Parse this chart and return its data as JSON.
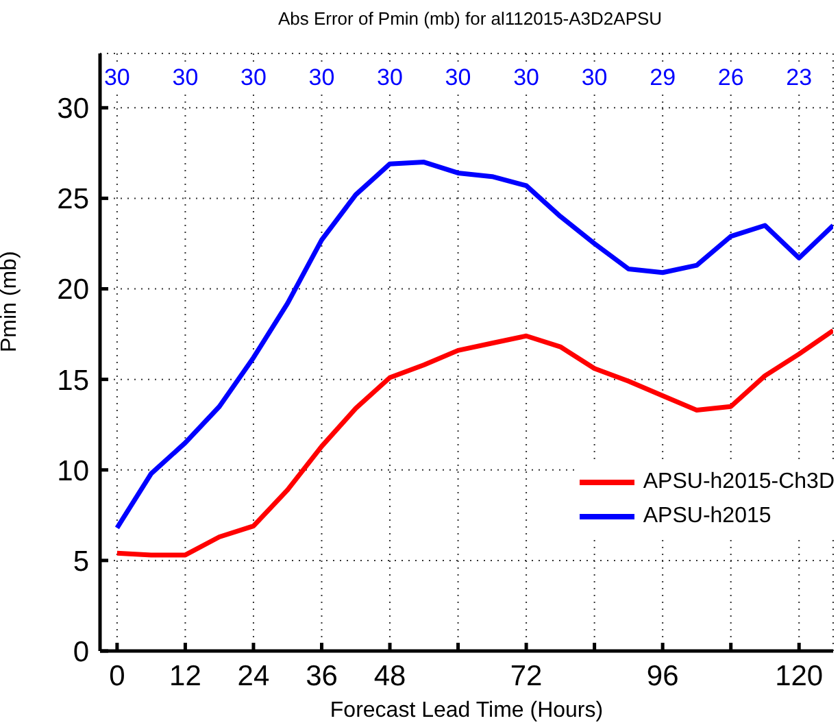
{
  "chart_data": {
    "type": "line",
    "title": "Abs Error of Pmin (mb) for al112015-A3D2APSU",
    "xlabel": "Forecast Lead Time (Hours)",
    "ylabel": "Pmin (mb)",
    "x": [
      0,
      6,
      12,
      18,
      24,
      30,
      36,
      42,
      48,
      54,
      60,
      66,
      72,
      78,
      84,
      90,
      96,
      102,
      108,
      114,
      120,
      126
    ],
    "series": [
      {
        "name": "APSU-h2015-Ch3D",
        "color": "#ff0000",
        "values": [
          5.4,
          5.3,
          5.3,
          6.3,
          6.9,
          8.9,
          11.3,
          13.4,
          15.1,
          15.8,
          16.6,
          17.0,
          17.4,
          16.8,
          15.6,
          14.9,
          14.1,
          13.3,
          13.5,
          15.2,
          16.4,
          17.7
        ]
      },
      {
        "name": "APSU-h2015",
        "color": "#0000ff",
        "values": [
          6.8,
          9.8,
          11.5,
          13.5,
          16.2,
          19.2,
          22.7,
          25.2,
          26.9,
          27.0,
          26.4,
          26.2,
          25.7,
          24.0,
          22.5,
          21.1,
          20.9,
          21.3,
          22.9,
          23.5,
          21.7,
          23.5
        ]
      }
    ],
    "annotations": [
      {
        "text": "30",
        "x": 0
      },
      {
        "text": "30",
        "x": 12
      },
      {
        "text": "30",
        "x": 24
      },
      {
        "text": "30",
        "x": 36
      },
      {
        "text": "30",
        "x": 48
      },
      {
        "text": "30",
        "x": 60
      },
      {
        "text": "30",
        "x": 72
      },
      {
        "text": "30",
        "x": 84
      },
      {
        "text": "29",
        "x": 96
      },
      {
        "text": "26",
        "x": 108
      },
      {
        "text": "23",
        "x": 120
      }
    ],
    "xlim": [
      -3,
      126
    ],
    "xticks": [
      0,
      12,
      24,
      36,
      48,
      {
        "value": 60,
        "label": null
      },
      72,
      {
        "value": 84,
        "label": null
      },
      96,
      {
        "value": 108,
        "label": null
      },
      120
    ],
    "ylim": [
      0,
      33
    ],
    "yticks": [
      0,
      5,
      10,
      15,
      20,
      25,
      30
    ],
    "grid": true,
    "legend": "bottom right",
    "marker": "none",
    "line_style": "solid"
  }
}
